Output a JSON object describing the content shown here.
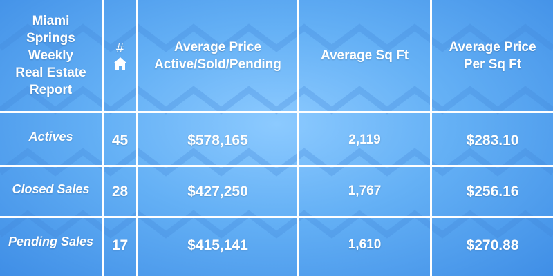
{
  "table": {
    "title_lines": [
      "Miami",
      "Springs",
      "Weekly",
      "Real Estate",
      "Report"
    ],
    "count_header": "#",
    "count_header_icon": "house-icon",
    "col_avg_price_lines": [
      "Average Price",
      "Active/Sold/Pending"
    ],
    "col_avg_sqft": "Average Sq Ft",
    "col_price_per_sqft_lines": [
      "Average Price",
      "Per Sq Ft"
    ],
    "rows": [
      {
        "label": "Actives",
        "count": "45",
        "avg_price": "$578,165",
        "avg_sqft": "2,119",
        "price_per_sqft": "$283.10"
      },
      {
        "label": "Closed Sales",
        "count": "28",
        "avg_price": "$427,250",
        "avg_sqft": "1,767",
        "price_per_sqft": "$256.16"
      },
      {
        "label": "Pending Sales",
        "count": "17",
        "avg_price": "$415,141",
        "avg_sqft": "1,610",
        "price_per_sqft": "$270.88"
      }
    ]
  },
  "colors": {
    "background_center": "#8ccaff",
    "background_edge": "#3f8ee6",
    "grid_lines": "#ffffff",
    "text": "#ffffff"
  }
}
